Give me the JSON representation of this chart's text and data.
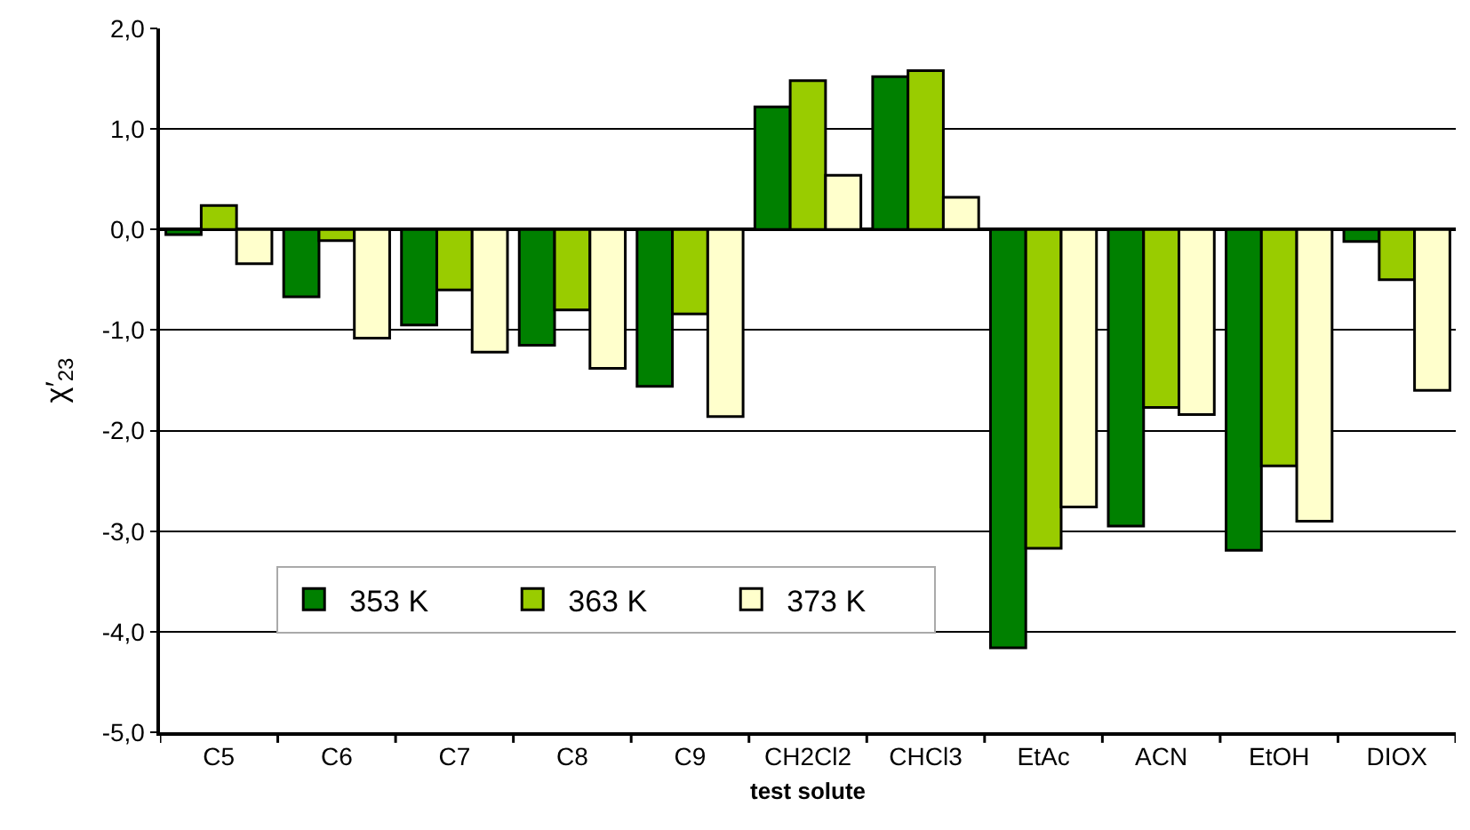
{
  "chart_data": {
    "type": "bar",
    "categories": [
      "C5",
      "C6",
      "C7",
      "C8",
      "C9",
      "CH2Cl2",
      "CHCl3",
      "EtAc",
      "ACN",
      "EtOH",
      "DIOX"
    ],
    "series": [
      {
        "name": "353 K",
        "color": "#008000",
        "values": [
          -0.05,
          -0.67,
          -0.95,
          -1.15,
          -1.56,
          1.22,
          1.52,
          -4.16,
          -2.95,
          -3.19,
          -0.12
        ]
      },
      {
        "name": "363 K",
        "color": "#99cc00",
        "values": [
          0.24,
          -0.11,
          -0.6,
          -0.8,
          -0.84,
          1.48,
          1.58,
          -3.17,
          -1.77,
          -2.35,
          -0.5
        ]
      },
      {
        "name": "373 K",
        "color": "#ffffcc",
        "values": [
          -0.34,
          -1.08,
          -1.22,
          -1.38,
          -1.86,
          0.54,
          0.32,
          -2.76,
          -1.84,
          -2.9,
          -1.6
        ]
      }
    ],
    "xlabel": "test solute",
    "ylabel": "χ′$_{23}$",
    "ylim": [
      -5,
      2
    ],
    "yticks": [
      {
        "value": -5,
        "label": "-5,0"
      },
      {
        "value": -4,
        "label": "-4,0"
      },
      {
        "value": -3,
        "label": "-3,0"
      },
      {
        "value": -2,
        "label": "-2,0"
      },
      {
        "value": -1,
        "label": "-1,0"
      },
      {
        "value": 0,
        "label": "0,0"
      },
      {
        "value": 1,
        "label": "1,0"
      },
      {
        "value": 2,
        "label": "2,0"
      }
    ],
    "grid": "y",
    "legend": "bottom left"
  }
}
